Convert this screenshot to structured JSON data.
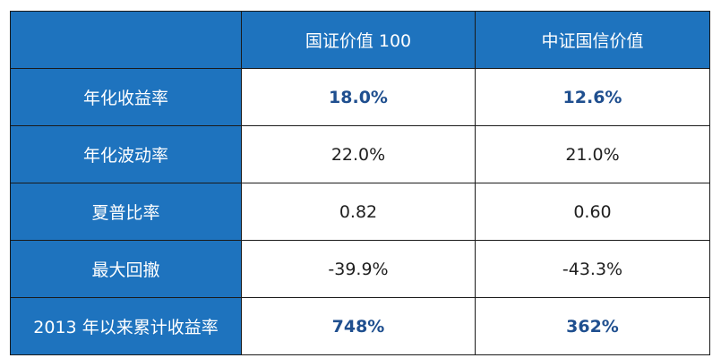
{
  "colors": {
    "header_bg": "#1e73be",
    "header_text": "#ffffff",
    "highlight_text": "#1f4f8f",
    "body_text": "#1f1f1f",
    "border": "#1a1a1a"
  },
  "table": {
    "columns": [
      "",
      "国证价值 100",
      "中证国信价值"
    ],
    "rows": [
      {
        "label": "年化收益率",
        "values": [
          "18.0%",
          "12.6%"
        ],
        "highlight": true
      },
      {
        "label": "年化波动率",
        "values": [
          "22.0%",
          "21.0%"
        ],
        "highlight": false
      },
      {
        "label": "夏普比率",
        "values": [
          "0.82",
          "0.60"
        ],
        "highlight": false
      },
      {
        "label": "最大回撤",
        "values": [
          "-39.9%",
          "-43.3%"
        ],
        "highlight": false
      },
      {
        "label": "2013 年以来累计收益率",
        "values": [
          "748%",
          "362%"
        ],
        "highlight": true
      }
    ]
  }
}
